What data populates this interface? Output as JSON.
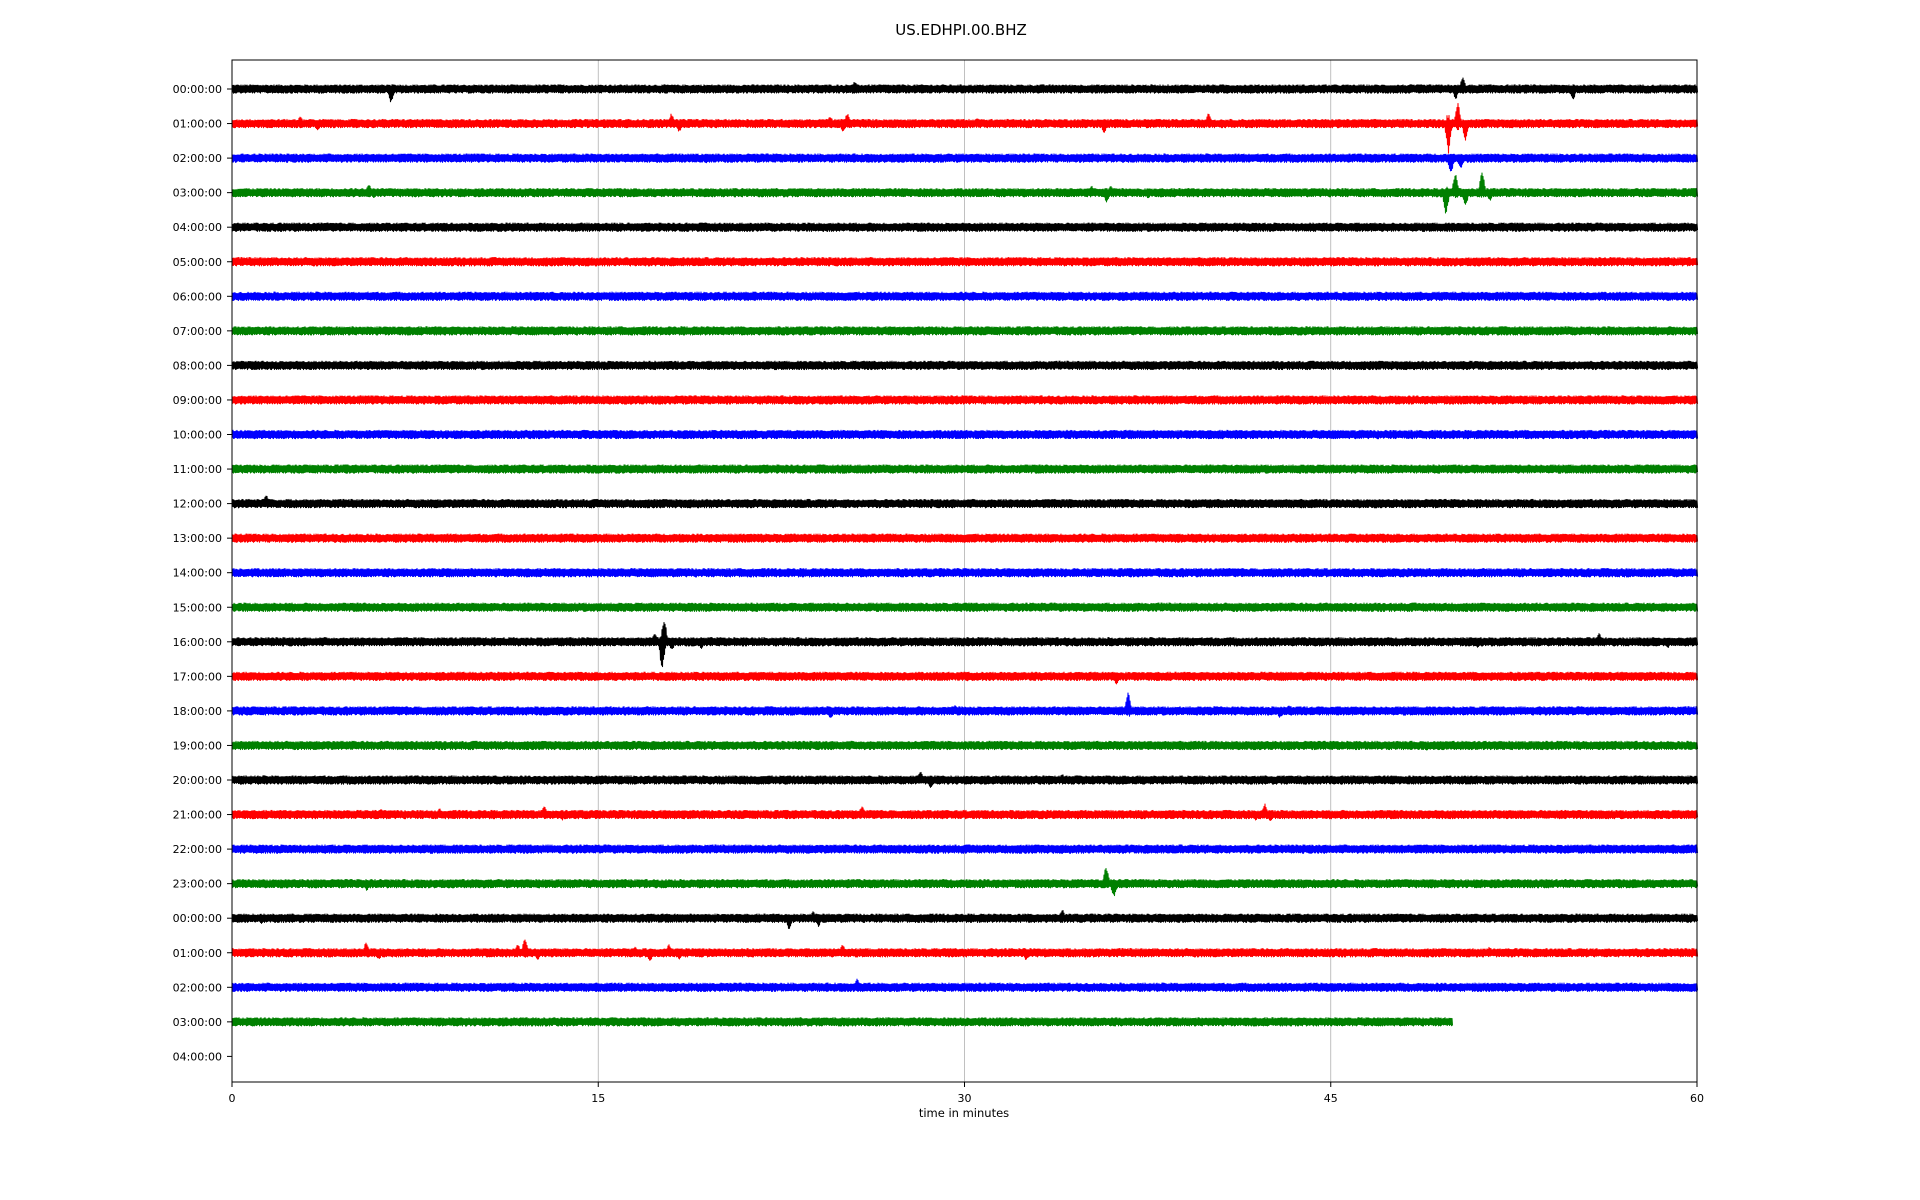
{
  "chart_data": {
    "type": "line",
    "title": "US.EDHPI.00.BHZ",
    "xlabel": "time in minutes",
    "ylabel": "",
    "xlim": [
      0,
      60
    ],
    "xticks": [
      0,
      15,
      30,
      45,
      60
    ],
    "grid": "vertical",
    "color_cycle": [
      "#000000",
      "#ff0000",
      "#0000ff",
      "#008000"
    ],
    "rows": [
      {
        "label": "00:00:00",
        "events": [
          [
            6.5,
            -1.0
          ],
          [
            25.5,
            0.55
          ],
          [
            50.1,
            -0.7
          ],
          [
            50.4,
            0.9
          ],
          [
            54.9,
            -0.8
          ],
          [
            56.5,
            0.3
          ]
        ]
      },
      {
        "label": "01:00:00",
        "events": [
          [
            2.8,
            0.5
          ],
          [
            3.5,
            -0.5
          ],
          [
            18.0,
            0.7
          ],
          [
            18.3,
            -0.6
          ],
          [
            24.5,
            0.5
          ],
          [
            25.0,
            -0.6
          ],
          [
            25.2,
            0.7
          ],
          [
            27.9,
            0.3
          ],
          [
            30.5,
            0.4
          ],
          [
            35.7,
            -0.7
          ],
          [
            36.9,
            0.3
          ],
          [
            40.0,
            0.8
          ],
          [
            49.8,
            -2.2
          ],
          [
            50.2,
            1.6
          ],
          [
            50.5,
            -1.2
          ]
        ]
      },
      {
        "label": "02:00:00",
        "events": [
          [
            18.8,
            0.3
          ],
          [
            19.4,
            -0.4
          ],
          [
            48.0,
            0.3
          ],
          [
            49.9,
            -1.2
          ],
          [
            50.3,
            -0.8
          ]
        ]
      },
      {
        "label": "03:00:00",
        "events": [
          [
            5.6,
            0.6
          ],
          [
            5.8,
            -0.4
          ],
          [
            35.2,
            0.5
          ],
          [
            35.8,
            -0.7
          ],
          [
            36.0,
            0.5
          ],
          [
            37.5,
            -0.4
          ],
          [
            49.7,
            -1.6
          ],
          [
            50.1,
            1.4
          ],
          [
            50.5,
            -1.0
          ],
          [
            51.2,
            1.5
          ],
          [
            51.5,
            -0.6
          ]
        ]
      },
      {
        "label": "04:00:00",
        "events": [
          [
            44.5,
            0.2
          ]
        ]
      },
      {
        "label": "05:00:00",
        "events": []
      },
      {
        "label": "06:00:00",
        "events": [
          [
            13.3,
            0.2
          ]
        ]
      },
      {
        "label": "07:00:00",
        "events": []
      },
      {
        "label": "08:00:00",
        "events": []
      },
      {
        "label": "09:00:00",
        "events": [
          [
            57.3,
            -0.2
          ]
        ]
      },
      {
        "label": "10:00:00",
        "events": [
          [
            17.4,
            -0.2
          ],
          [
            49.0,
            0.2
          ]
        ]
      },
      {
        "label": "11:00:00",
        "events": []
      },
      {
        "label": "12:00:00",
        "events": [
          [
            1.4,
            0.6
          ],
          [
            1.9,
            -0.3
          ]
        ]
      },
      {
        "label": "13:00:00",
        "events": []
      },
      {
        "label": "14:00:00",
        "events": [
          [
            35.0,
            -0.2
          ]
        ]
      },
      {
        "label": "15:00:00",
        "events": []
      },
      {
        "label": "16:00:00",
        "events": [
          [
            17.3,
            0.6
          ],
          [
            17.6,
            -2.0
          ],
          [
            17.7,
            1.7
          ],
          [
            18.0,
            -0.6
          ],
          [
            19.2,
            -0.5
          ],
          [
            51.0,
            -0.4
          ],
          [
            56.0,
            0.6
          ],
          [
            58.2,
            0.4
          ],
          [
            58.8,
            -0.4
          ]
        ]
      },
      {
        "label": "17:00:00",
        "events": [
          [
            30.1,
            -0.4
          ],
          [
            36.2,
            -0.6
          ],
          [
            48.0,
            0.2
          ]
        ]
      },
      {
        "label": "18:00:00",
        "events": [
          [
            24.5,
            -0.6
          ],
          [
            29.6,
            0.4
          ],
          [
            36.7,
            1.3
          ],
          [
            40.5,
            0.3
          ],
          [
            42.9,
            -0.5
          ],
          [
            43.3,
            0.4
          ]
        ]
      },
      {
        "label": "19:00:00",
        "events": [
          [
            48.9,
            -0.4
          ],
          [
            51.0,
            0.2
          ]
        ]
      },
      {
        "label": "20:00:00",
        "events": [
          [
            10.8,
            0.3
          ],
          [
            13.2,
            0.3
          ],
          [
            19.0,
            0.3
          ],
          [
            25.6,
            -0.2
          ],
          [
            28.2,
            0.6
          ],
          [
            28.6,
            -0.6
          ],
          [
            34.0,
            0.4
          ]
        ]
      },
      {
        "label": "21:00:00",
        "events": [
          [
            6.1,
            0.4
          ],
          [
            8.5,
            0.4
          ],
          [
            12.8,
            0.6
          ],
          [
            13.5,
            -0.4
          ],
          [
            19.8,
            0.3
          ],
          [
            25.8,
            0.6
          ],
          [
            35.5,
            0.3
          ],
          [
            41.9,
            -0.4
          ],
          [
            42.3,
            0.8
          ],
          [
            42.5,
            -0.5
          ]
        ]
      },
      {
        "label": "22:00:00",
        "events": [
          [
            4.0,
            0.3
          ]
        ]
      },
      {
        "label": "23:00:00",
        "events": [
          [
            5.5,
            -0.5
          ],
          [
            6.2,
            0.3
          ],
          [
            14.0,
            0.3
          ],
          [
            17.9,
            0.3
          ],
          [
            20.4,
            -0.3
          ],
          [
            35.8,
            1.3
          ],
          [
            36.1,
            -1.0
          ],
          [
            53.8,
            -0.2
          ]
        ]
      },
      {
        "label": "00:00:00",
        "events": [
          [
            1.2,
            -0.4
          ],
          [
            22.8,
            -0.8
          ],
          [
            23.8,
            0.5
          ],
          [
            24.0,
            -0.6
          ],
          [
            34.0,
            0.6
          ]
        ]
      },
      {
        "label": "01:00:00",
        "events": [
          [
            5.5,
            0.8
          ],
          [
            6.0,
            -0.5
          ],
          [
            11.7,
            0.6
          ],
          [
            12.0,
            1.1
          ],
          [
            12.5,
            -0.5
          ],
          [
            16.5,
            0.4
          ],
          [
            17.1,
            -0.7
          ],
          [
            17.9,
            0.6
          ],
          [
            18.3,
            -0.5
          ],
          [
            19.3,
            0.3
          ],
          [
            25.0,
            0.6
          ],
          [
            32.5,
            -0.5
          ],
          [
            51.5,
            0.4
          ]
        ]
      },
      {
        "label": "02:00:00",
        "events": [
          [
            25.6,
            0.6
          ],
          [
            57.6,
            -0.2
          ]
        ]
      },
      {
        "label": "03:00:00",
        "end_minute": 50.0,
        "events": []
      },
      {
        "label": "04:00:00",
        "end_minute": 0,
        "events": []
      }
    ]
  }
}
